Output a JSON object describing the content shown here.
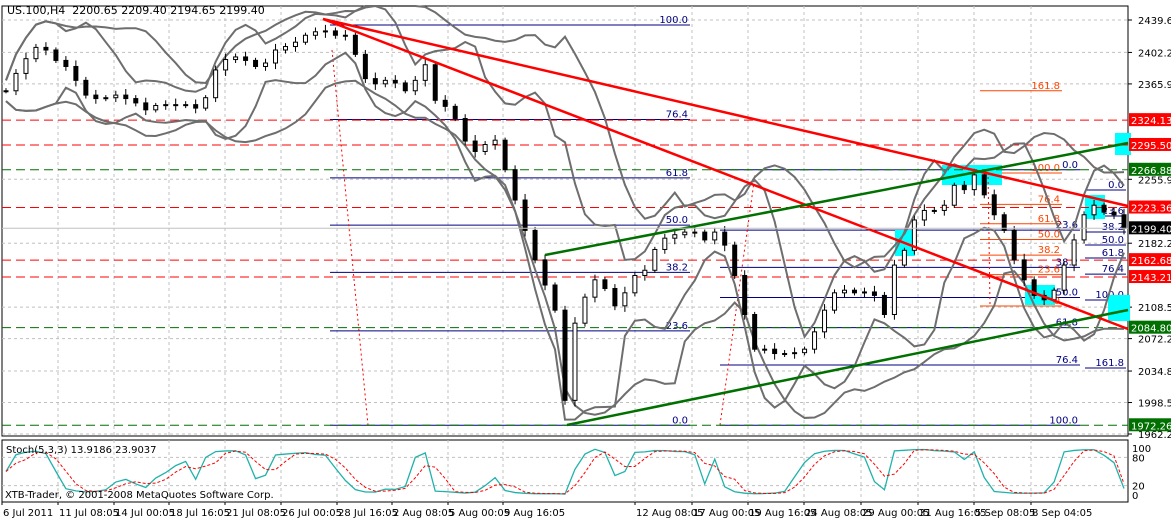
{
  "header": {
    "symbol": "US.100,H4",
    "open": "2200.65",
    "high": "2209.40",
    "low": "2194.65",
    "close": "2199.40"
  },
  "stoch_label": "Stoch(5,3,3) 13.9186 23.9037",
  "copyright": "XTB-Trader, © 2001-2008 MetaQuotes Software Corp.",
  "colors": {
    "bull_body": "#ffffff",
    "bear_body": "#000000",
    "bollinger": "#6e6e6e",
    "resistance": "#ff0000",
    "support": "#007000",
    "fib_blue": "#000080",
    "fib_orange": "#ff4500",
    "highlight": "#00ffff",
    "stoch_main": "#20b2aa",
    "stoch_signal": "#ff0000",
    "grid": "#c0c0c0"
  },
  "chart_data": {
    "type": "candlestick",
    "ylim": [
      1962.2,
      2439.6
    ],
    "price_ticks": [
      "2439.60",
      "2402.20",
      "2365.90",
      "2255.90",
      "2182.20",
      "2108.50",
      "2072.20",
      "2034.80",
      "1998.50",
      "1962.20"
    ],
    "time_ticks": [
      "6 Jul 2011",
      "11 Jul 08:05",
      "14 Jul 00:05",
      "18 Jul 16:05",
      "21 Jul 08:05",
      "26 Jul 00:05",
      "28 Jul 16:05",
      "2 Aug 08:05",
      "5 Aug 00:05",
      "9 Aug 16:05",
      "12 Aug 08:05",
      "17 Aug 00:05",
      "19 Aug 16:05",
      "24 Aug 08:05",
      "29 Aug 00:05",
      "31 Aug 16:05",
      "5 Sep 08:05",
      "8 Sep 04:05"
    ],
    "closes": [
      2358,
      2378,
      2395,
      2408,
      2405,
      2393,
      2386,
      2370,
      2353,
      2349,
      2350,
      2353,
      2349,
      2344,
      2336,
      2341,
      2342,
      2342,
      2342,
      2338,
      2350,
      2382,
      2394,
      2397,
      2393,
      2386,
      2390,
      2405,
      2409,
      2414,
      2422,
      2426,
      2427,
      2422,
      2422,
      2400,
      2372,
      2366,
      2370,
      2367,
      2358,
      2370,
      2388,
      2347,
      2340,
      2326,
      2300,
      2288,
      2296,
      2301,
      2267,
      2232,
      2197,
      2163,
      2134,
      2105,
      2001,
      2090,
      2120,
      2140,
      2130,
      2110,
      2125,
      2145,
      2151,
      2175,
      2188,
      2192,
      2195,
      2195,
      2186,
      2195,
      2180,
      2145,
      2100,
      2060,
      2060,
      2055,
      2055,
      2056,
      2060,
      2080,
      2105,
      2125,
      2128,
      2125,
      2126,
      2122,
      2100,
      2157,
      2174,
      2209,
      2220,
      2220,
      2226,
      2249,
      2244,
      2261,
      2238,
      2215,
      2197,
      2163,
      2140,
      2122,
      2117,
      2128,
      2157,
      2186,
      2215,
      2226,
      2218,
      2215,
      2199.4
    ],
    "horizontal_levels": [
      {
        "price": 2324.13,
        "label": "2324.13",
        "color": "#ff0000",
        "style": "dashed"
      },
      {
        "price": 2295.5,
        "label": "2295.50",
        "color": "#ff0000",
        "style": "dashed"
      },
      {
        "price": 2266.88,
        "label": "2266.88",
        "color": "#007000",
        "style": "dashed"
      },
      {
        "price": 2223.36,
        "label": "2223.36",
        "color": "#ff0000",
        "style": "dashed"
      },
      {
        "price": 2199.4,
        "label": "2199.40",
        "color": "#000000",
        "style": "solid"
      },
      {
        "price": 2162.68,
        "label": "2162.68",
        "color": "#ff0000",
        "style": "dashed"
      },
      {
        "price": 2143.21,
        "label": "2143.21",
        "color": "#ff0000",
        "style": "dashed"
      },
      {
        "price": 2084.8,
        "label": "2084.80",
        "color": "#007000",
        "style": "dashed"
      },
      {
        "price": 1972.26,
        "label": "1972.26",
        "color": "#007000",
        "style": "dashed"
      }
    ],
    "trendlines": [
      {
        "from": [
          "26 Jul 00:05",
          2436
        ],
        "to_price_at_right": 2223,
        "color": "#ff0000"
      },
      {
        "from": [
          "26 Jul 00:05",
          2436
        ],
        "to_price_at_right": 2093,
        "color": "#ff0000"
      },
      {
        "from": [
          "9 Aug",
          2161
        ],
        "to_price_at_right": 2291,
        "color": "#007000"
      },
      {
        "from": [
          "9 Aug",
          1966
        ],
        "to_price_at_right": 2099,
        "color": "#007000"
      }
    ],
    "fibonacci": [
      {
        "color": "#000080",
        "p0": 1972.26,
        "p100": 2433.8,
        "levels": [
          "0.0",
          "23.6",
          "38.2",
          "50.0",
          "61.8",
          "76.4",
          "100.0"
        ]
      },
      {
        "color": "#000080",
        "p0": 2266.88,
        "p100": 1972.26,
        "levels": [
          "0.0",
          "23.6",
          "38.2",
          "50.0",
          "61.8",
          "76.4",
          "100.0"
        ]
      },
      {
        "color": "#ff4500",
        "p0": 2109.8,
        "p100": 2263.2,
        "levels": [
          "0.0",
          "23.6",
          "38.2",
          "50.0",
          "61.8",
          "76.4",
          "100.0",
          "161.8"
        ]
      },
      {
        "color": "#000080",
        "p0": 2243.5,
        "p100": 2116.7,
        "levels": [
          "0.0",
          "23.6",
          "38.2",
          "50.0",
          "61.8",
          "76.4",
          "100.0",
          "161.8"
        ]
      }
    ],
    "stochastic": {
      "k": 13.9186,
      "d": 23.9037,
      "levels": [
        "100",
        "80",
        "20",
        "0"
      ]
    }
  }
}
